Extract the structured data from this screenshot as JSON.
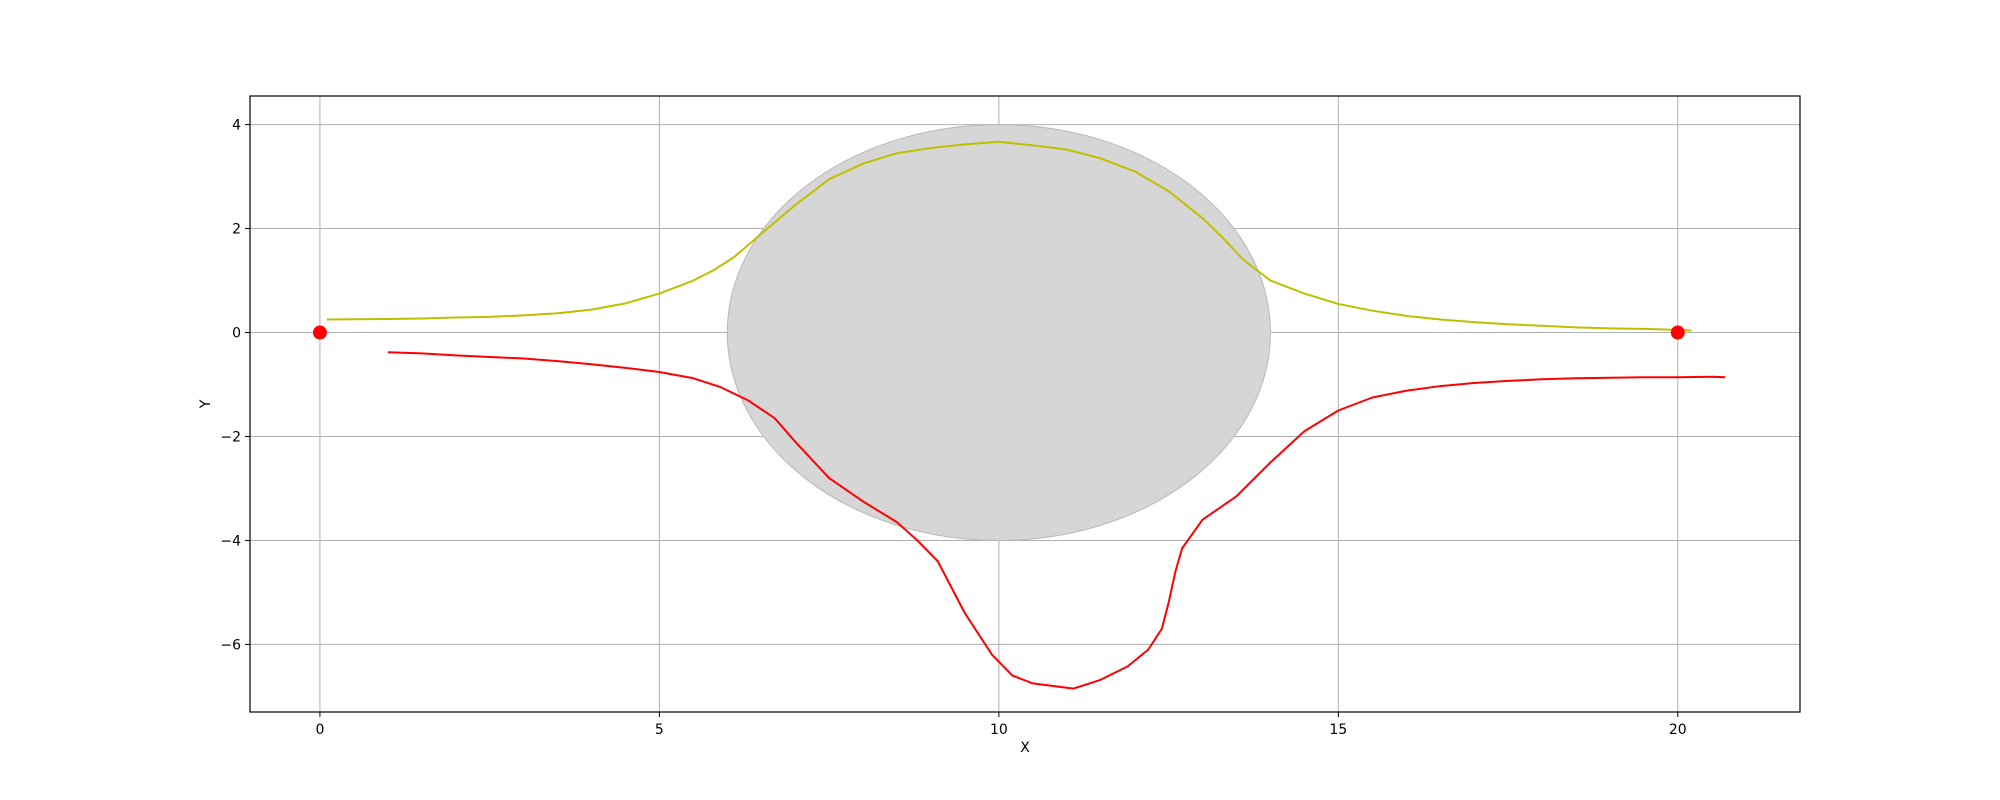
{
  "chart_data": {
    "type": "line",
    "xlabel": "X",
    "ylabel": "Y",
    "xlim": [
      -1.03,
      21.8
    ],
    "ylim": [
      -7.3,
      4.55
    ],
    "grid": true,
    "xticks": [
      0,
      5,
      10,
      15,
      20
    ],
    "yticks": [
      4,
      2,
      0,
      -2,
      -4,
      -6
    ],
    "xtick_labels": [
      "0",
      "5",
      "10",
      "15",
      "20"
    ],
    "ytick_labels": [
      "4",
      "2",
      "0",
      "−2",
      "−4",
      "−6"
    ],
    "obstacle": {
      "shape": "ellipse",
      "center": [
        10,
        0
      ],
      "rx": 4,
      "ry": 4,
      "color": "#d6d6d6"
    },
    "points": [
      {
        "x": 0,
        "y": 0,
        "color": "#ff0000"
      },
      {
        "x": 20,
        "y": 0,
        "color": "#ff0000"
      }
    ],
    "series": [
      {
        "color": "#bfbf00",
        "x": [
          0.1,
          1.0,
          1.5,
          2.0,
          2.5,
          3.0,
          3.5,
          4.0,
          4.5,
          5.0,
          5.5,
          5.8,
          6.1,
          6.5,
          7.0,
          7.5,
          8.0,
          8.5,
          9.0,
          9.5,
          10.0,
          10.5,
          11.0,
          11.5,
          12.0,
          12.5,
          13.0,
          13.3,
          13.6,
          14.0,
          14.5,
          15.0,
          15.5,
          16.0,
          16.5,
          17.0,
          17.5,
          18.0,
          18.5,
          19.0,
          19.5,
          20.0,
          20.2
        ],
        "y": [
          0.25,
          0.26,
          0.27,
          0.29,
          0.3,
          0.33,
          0.37,
          0.44,
          0.56,
          0.75,
          1.0,
          1.2,
          1.45,
          1.9,
          2.45,
          2.95,
          3.25,
          3.45,
          3.55,
          3.62,
          3.67,
          3.6,
          3.52,
          3.35,
          3.1,
          2.72,
          2.2,
          1.82,
          1.4,
          1.0,
          0.75,
          0.55,
          0.42,
          0.32,
          0.25,
          0.2,
          0.16,
          0.13,
          0.1,
          0.08,
          0.07,
          0.05,
          0.04
        ]
      },
      {
        "color": "#ff0000",
        "x": [
          1.0,
          1.5,
          2.0,
          2.5,
          3.0,
          3.5,
          4.0,
          4.5,
          5.0,
          5.5,
          5.9,
          6.3,
          6.7,
          7.0,
          7.5,
          8.0,
          8.5,
          8.8,
          9.1,
          9.5,
          9.9,
          10.2,
          10.5,
          10.8,
          11.1,
          11.5,
          11.9,
          12.2,
          12.4,
          12.5,
          12.6,
          12.7,
          13.0,
          13.5,
          14.0,
          14.5,
          15.0,
          15.5,
          16.0,
          16.5,
          17.0,
          17.5,
          18.0,
          18.5,
          19.0,
          19.5,
          20.0,
          20.5,
          20.7
        ],
        "y": [
          -0.38,
          -0.4,
          -0.44,
          -0.47,
          -0.5,
          -0.55,
          -0.61,
          -0.68,
          -0.76,
          -0.88,
          -1.05,
          -1.3,
          -1.65,
          -2.1,
          -2.8,
          -3.25,
          -3.65,
          -4.0,
          -4.4,
          -5.4,
          -6.2,
          -6.6,
          -6.75,
          -6.8,
          -6.85,
          -6.68,
          -6.42,
          -6.1,
          -5.7,
          -5.2,
          -4.6,
          -4.15,
          -3.6,
          -3.15,
          -2.5,
          -1.9,
          -1.5,
          -1.25,
          -1.12,
          -1.03,
          -0.97,
          -0.93,
          -0.9,
          -0.88,
          -0.87,
          -0.86,
          -0.86,
          -0.85,
          -0.86
        ]
      }
    ]
  }
}
